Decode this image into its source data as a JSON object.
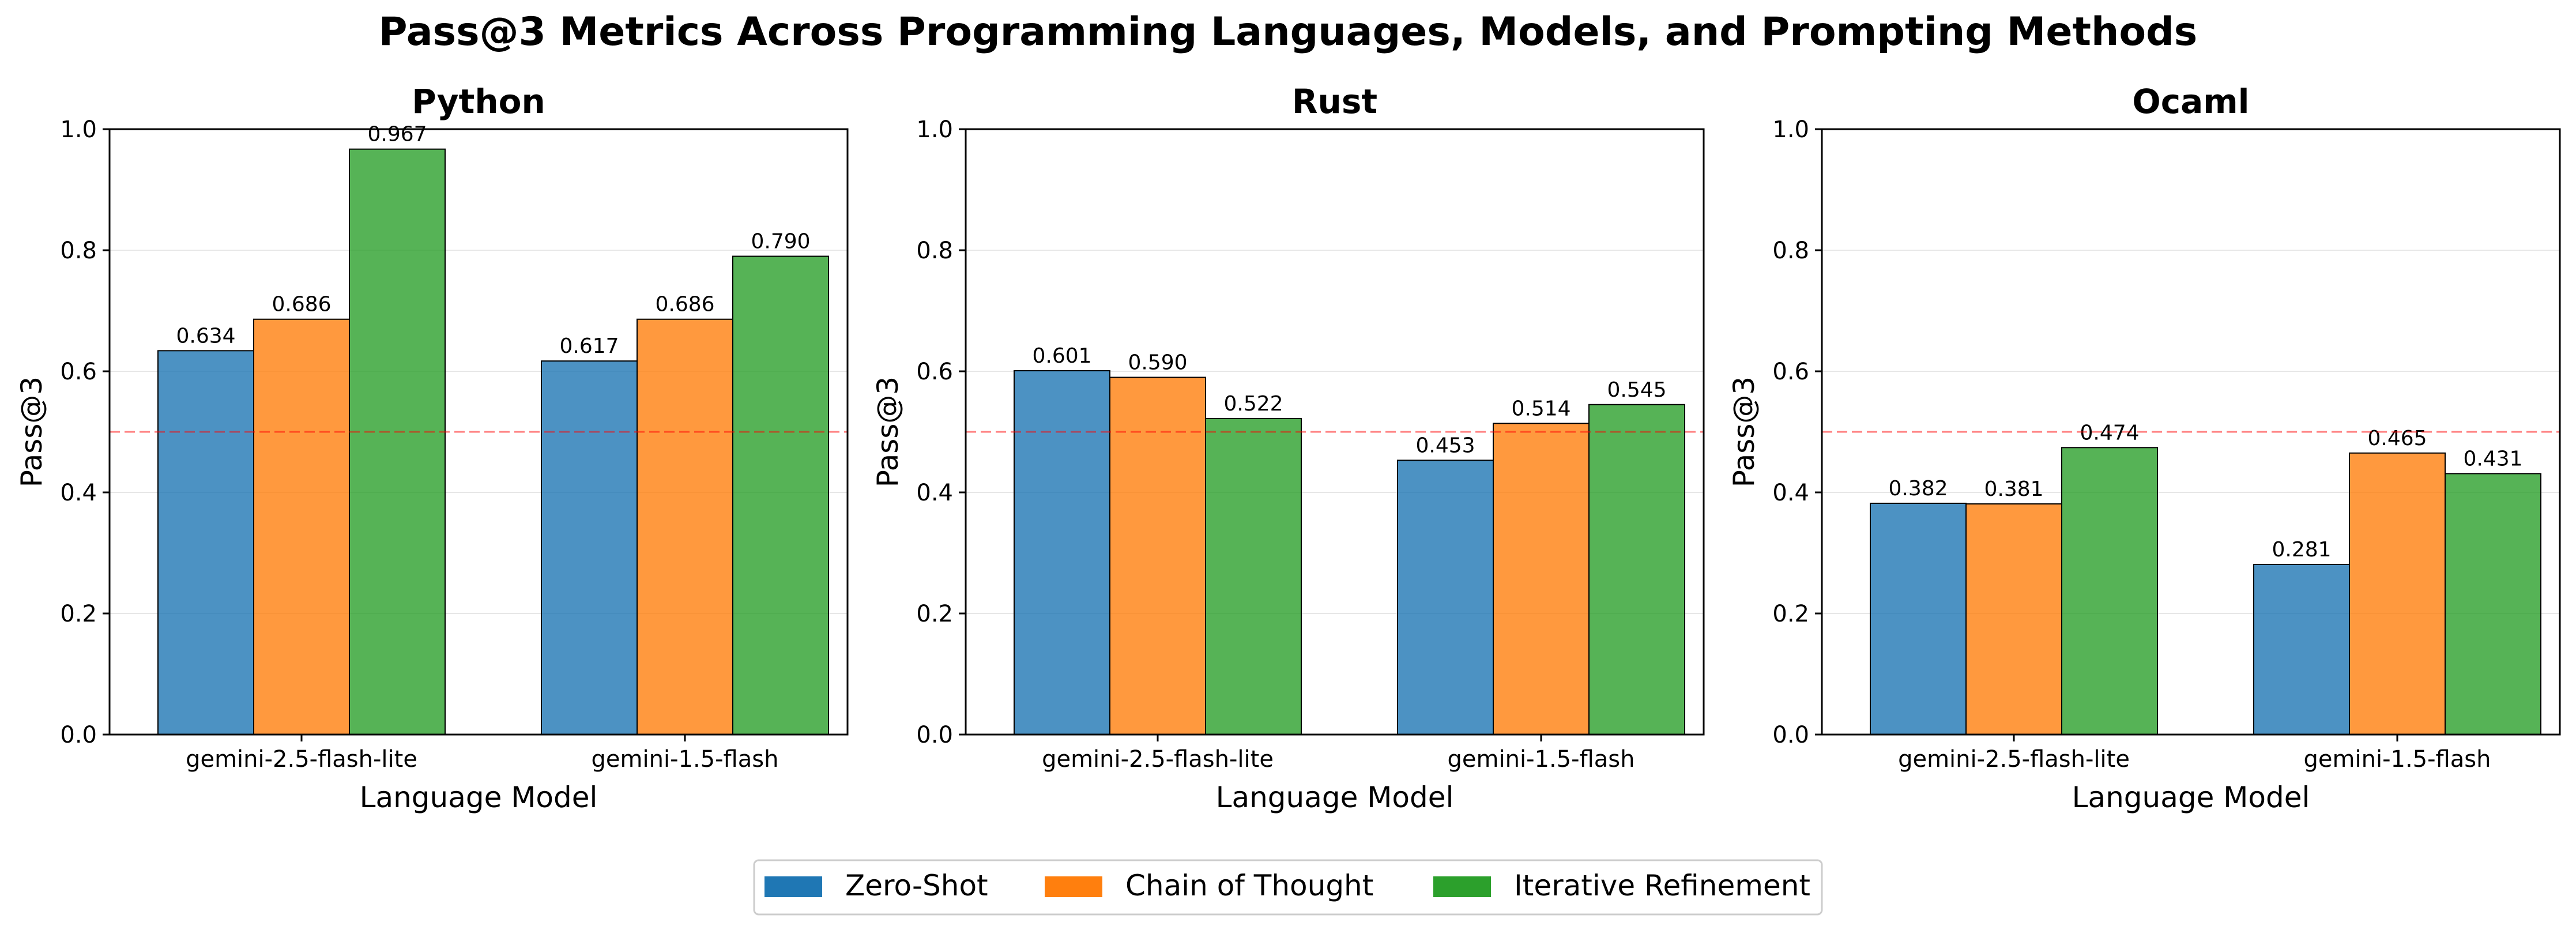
{
  "figure": {
    "title": "Pass@3 Metrics Across Programming Languages, Models, and Prompting Methods"
  },
  "legend": {
    "placement": "bottom-center",
    "items": [
      {
        "label": "Zero-Shot",
        "color": "#1f77b4"
      },
      {
        "label": "Chain of Thought",
        "color": "#ff7f0e"
      },
      {
        "label": "Iterative Refinement",
        "color": "#2ca02c"
      }
    ]
  },
  "chart_data": [
    {
      "type": "bar",
      "title": "Python",
      "xlabel": "Language Model",
      "ylabel": "Pass@3",
      "ylim": [
        0,
        1.0
      ],
      "yticks": [
        "0.0",
        "0.2",
        "0.4",
        "0.6",
        "0.8",
        "1.0"
      ],
      "grid": "horizontal",
      "reference_line": 0.5,
      "categories": [
        "gemini-2.5-flash-lite",
        "gemini-1.5-flash"
      ],
      "series": [
        {
          "name": "Zero-Shot",
          "values": [
            0.634,
            0.617
          ],
          "labels": [
            "0.634",
            "0.617"
          ]
        },
        {
          "name": "Chain of Thought",
          "values": [
            0.686,
            0.686
          ],
          "labels": [
            "0.686",
            "0.686"
          ]
        },
        {
          "name": "Iterative Refinement",
          "values": [
            0.967,
            0.79
          ],
          "labels": [
            "0.967",
            "0.790"
          ]
        }
      ]
    },
    {
      "type": "bar",
      "title": "Rust",
      "xlabel": "Language Model",
      "ylabel": "Pass@3",
      "ylim": [
        0,
        1.0
      ],
      "yticks": [
        "0.0",
        "0.2",
        "0.4",
        "0.6",
        "0.8",
        "1.0"
      ],
      "grid": "horizontal",
      "reference_line": 0.5,
      "categories": [
        "gemini-2.5-flash-lite",
        "gemini-1.5-flash"
      ],
      "series": [
        {
          "name": "Zero-Shot",
          "values": [
            0.601,
            0.453
          ],
          "labels": [
            "0.601",
            "0.453"
          ]
        },
        {
          "name": "Chain of Thought",
          "values": [
            0.59,
            0.514
          ],
          "labels": [
            "0.590",
            "0.514"
          ]
        },
        {
          "name": "Iterative Refinement",
          "values": [
            0.522,
            0.545
          ],
          "labels": [
            "0.522",
            "0.545"
          ]
        }
      ]
    },
    {
      "type": "bar",
      "title": "Ocaml",
      "xlabel": "Language Model",
      "ylabel": "Pass@3",
      "ylim": [
        0,
        1.0
      ],
      "yticks": [
        "0.0",
        "0.2",
        "0.4",
        "0.6",
        "0.8",
        "1.0"
      ],
      "grid": "horizontal",
      "reference_line": 0.5,
      "categories": [
        "gemini-2.5-flash-lite",
        "gemini-1.5-flash"
      ],
      "series": [
        {
          "name": "Zero-Shot",
          "values": [
            0.382,
            0.281
          ],
          "labels": [
            "0.382",
            "0.281"
          ]
        },
        {
          "name": "Chain of Thought",
          "values": [
            0.381,
            0.465
          ],
          "labels": [
            "0.381",
            "0.465"
          ]
        },
        {
          "name": "Iterative Refinement",
          "values": [
            0.474,
            0.431
          ],
          "labels": [
            "0.474",
            "0.431"
          ]
        }
      ]
    }
  ]
}
